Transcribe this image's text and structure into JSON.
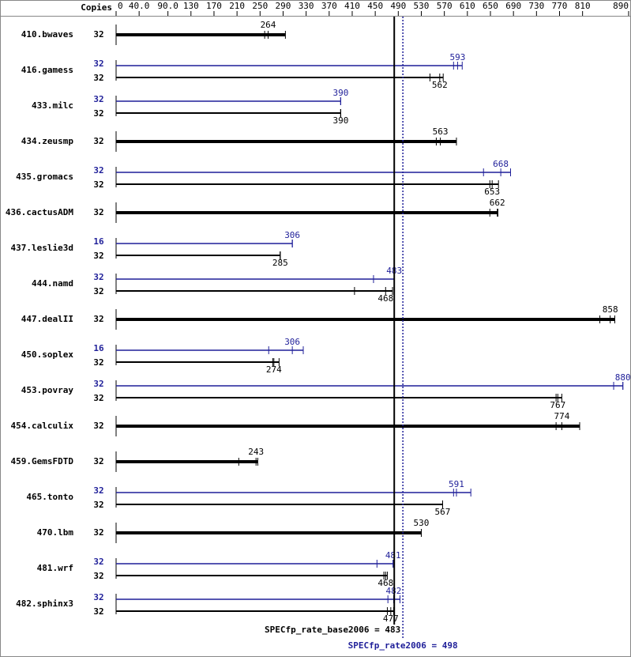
{
  "chart_data": {
    "type": "bar",
    "copies_label": "Copies",
    "xlim": [
      0,
      890
    ],
    "xticks": [
      0,
      {
        "value": 40,
        "label": "40.0"
      },
      {
        "value": 90,
        "label": "90.0"
      },
      130,
      170,
      210,
      250,
      290,
      330,
      370,
      410,
      450,
      490,
      530,
      570,
      610,
      650,
      690,
      730,
      770,
      810,
      890
    ],
    "base_color": "#000000",
    "peak_color": "#1f1f99",
    "rows": [
      {
        "name": "410.bwaves",
        "base": {
          "copies": 32,
          "runs": [
            258,
            264,
            294
          ]
        }
      },
      {
        "name": "416.gamess",
        "peak": {
          "copies": 32,
          "runs": [
            586,
            593,
            601
          ]
        },
        "base": {
          "copies": 32,
          "runs": [
            545,
            562,
            568
          ]
        }
      },
      {
        "name": "433.milc",
        "peak": {
          "copies": 32,
          "runs": [
            390,
            390,
            390
          ]
        },
        "base": {
          "copies": 32,
          "runs": [
            390,
            390,
            390
          ]
        }
      },
      {
        "name": "434.zeusmp",
        "base": {
          "copies": 32,
          "runs": [
            556,
            563,
            591
          ]
        }
      },
      {
        "name": "435.gromacs",
        "peak": {
          "copies": 32,
          "runs": [
            638,
            668,
            685
          ]
        },
        "base": {
          "copies": 32,
          "runs": [
            649,
            653,
            664
          ]
        }
      },
      {
        "name": "436.cactusADM",
        "base": {
          "copies": 32,
          "runs": [
            649,
            662,
            663
          ]
        }
      },
      {
        "name": "437.leslie3d",
        "peak": {
          "copies": 16,
          "runs": [
            306,
            306,
            306
          ]
        },
        "base": {
          "copies": 32,
          "runs": [
            285,
            285,
            285
          ]
        }
      },
      {
        "name": "444.namd",
        "peak": {
          "copies": 32,
          "runs": [
            447,
            483,
            483
          ]
        },
        "base": {
          "copies": 32,
          "runs": [
            414,
            468,
            480
          ]
        }
      },
      {
        "name": "447.dealII",
        "base": {
          "copies": 32,
          "runs": [
            840,
            858,
            866
          ]
        }
      },
      {
        "name": "450.soplex",
        "peak": {
          "copies": 16,
          "runs": [
            265,
            306,
            325
          ]
        },
        "base": {
          "copies": 32,
          "runs": [
            272,
            274,
            283
          ]
        }
      },
      {
        "name": "453.povray",
        "peak": {
          "copies": 32,
          "runs": [
            864,
            880,
            880
          ]
        },
        "base": {
          "copies": 32,
          "runs": [
            764,
            767,
            774
          ]
        }
      },
      {
        "name": "454.calculix",
        "base": {
          "copies": 32,
          "runs": [
            764,
            774,
            805
          ]
        }
      },
      {
        "name": "459.GemsFDTD",
        "base": {
          "copies": 32,
          "runs": [
            213,
            243,
            246
          ]
        }
      },
      {
        "name": "465.tonto",
        "peak": {
          "copies": 32,
          "runs": [
            586,
            591,
            616
          ]
        },
        "base": {
          "copies": 32,
          "runs": [
            567,
            567,
            567
          ]
        }
      },
      {
        "name": "470.lbm",
        "base": {
          "copies": 32,
          "runs": [
            530,
            530,
            530
          ]
        }
      },
      {
        "name": "481.wrf",
        "peak": {
          "copies": 32,
          "runs": [
            453,
            481,
            481
          ]
        },
        "base": {
          "copies": 32,
          "runs": [
            465,
            468,
            471
          ]
        }
      },
      {
        "name": "482.sphinx3",
        "peak": {
          "copies": 32,
          "runs": [
            472,
            482,
            493
          ]
        },
        "base": {
          "copies": 32,
          "runs": [
            471,
            477,
            482
          ]
        }
      }
    ],
    "base_score": 483,
    "base_score_label": "SPECfp_rate_base2006 = 483",
    "peak_score": 498,
    "peak_score_label": "SPECfp_rate2006 = 498"
  }
}
